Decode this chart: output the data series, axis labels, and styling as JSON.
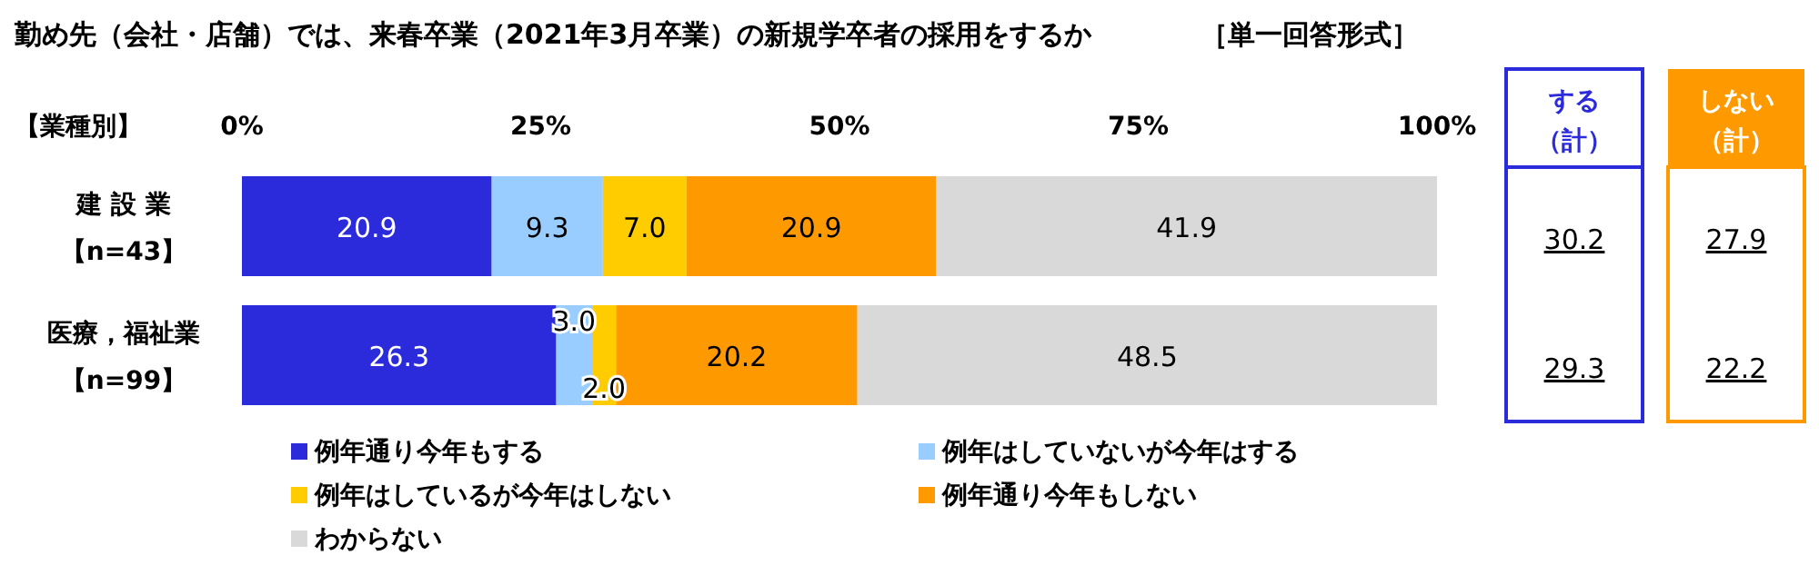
{
  "chart_data": {
    "type": "bar",
    "orientation": "horizontal",
    "stacked": true,
    "title": "勤め先（会社・店舗）では、来春卒業（2021年3月卒業）の新規学卒者の採用をするか",
    "subtitle": "［単一回答形式］",
    "ylabel": "【業種別】",
    "categories": [
      "建 設 業【n=43】",
      "医療，福祉業【n=99】"
    ],
    "xlim": [
      0,
      100
    ],
    "xticks": [
      {
        "value": 0,
        "label": "0%"
      },
      {
        "value": 25,
        "label": "25%"
      },
      {
        "value": 50,
        "label": "50%"
      },
      {
        "value": 75,
        "label": "75%"
      },
      {
        "value": 100,
        "label": "100%"
      }
    ],
    "series": [
      {
        "name": "例年通り今年もする",
        "color": "#2b2bdc",
        "values": [
          20.9,
          26.3
        ],
        "value_labels": [
          "20.9",
          "26.3"
        ]
      },
      {
        "name": "例年はしていないが今年はする",
        "color": "#99ccff",
        "values": [
          9.3,
          3.0
        ],
        "value_labels": [
          "9.3",
          "3.0"
        ]
      },
      {
        "name": "例年はしているが今年はしない",
        "color": "#ffcc00",
        "values": [
          7.0,
          2.0
        ],
        "value_labels": [
          "7.0",
          "2.0"
        ]
      },
      {
        "name": "例年通り今年もしない",
        "color": "#ff9900",
        "values": [
          20.9,
          20.2
        ],
        "value_labels": [
          "20.9",
          "20.2"
        ]
      },
      {
        "name": "わからない",
        "color": "#d9d9d9",
        "values": [
          41.9,
          48.5
        ],
        "value_labels": [
          "41.9",
          "48.5"
        ]
      }
    ],
    "legend": "bottom",
    "grid": false,
    "annotations": [
      "する（計）",
      "しない（計）",
      "30.2",
      "27.9",
      "29.3",
      "22.2"
    ]
  }
}
